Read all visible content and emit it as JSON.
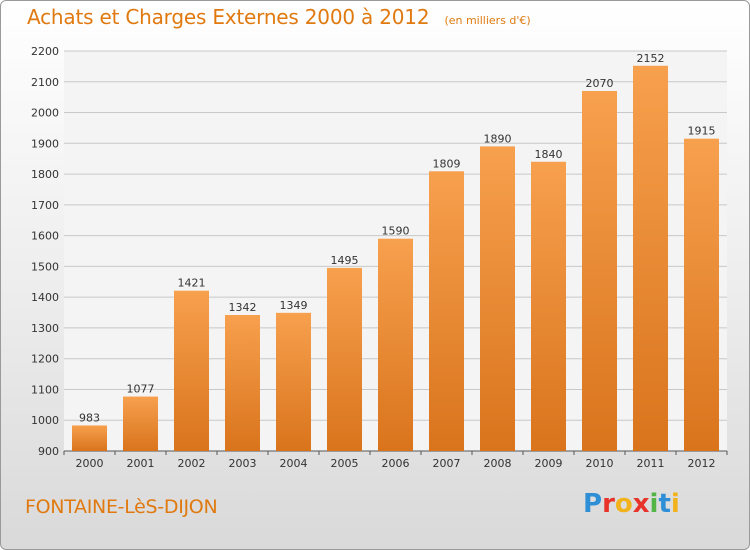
{
  "chart_data": {
    "type": "bar",
    "title": "Achats et Charges Externes 2000 à 2012",
    "subtitle": "(en milliers d'€)",
    "categories": [
      "2000",
      "2001",
      "2002",
      "2003",
      "2004",
      "2005",
      "2006",
      "2007",
      "2008",
      "2009",
      "2010",
      "2011",
      "2012"
    ],
    "values": [
      983,
      1077,
      1421,
      1342,
      1349,
      1495,
      1590,
      1809,
      1890,
      1840,
      2070,
      2152,
      1915
    ],
    "ylim": [
      900,
      2200
    ],
    "yticks": [
      900,
      1000,
      1100,
      1200,
      1300,
      1400,
      1500,
      1600,
      1700,
      1800,
      1900,
      2000,
      2100,
      2200
    ],
    "grid": true,
    "xlabel": "",
    "ylabel": "",
    "bar_color_top": "#f7a04e",
    "bar_color_bottom": "#d9741c"
  },
  "footer": {
    "city": "FONTAINE-LèS-DIJON",
    "logo_letters": [
      {
        "char": "P",
        "color": "#2f8fd6"
      },
      {
        "char": "r",
        "color": "#e8332a"
      },
      {
        "char": "o",
        "color": "#f2b21b"
      },
      {
        "char": "x",
        "color": "#e8332a"
      },
      {
        "char": "i",
        "color": "#55b447"
      },
      {
        "char": "t",
        "color": "#2f8fd6"
      },
      {
        "char": "i",
        "color": "#f2b21b"
      }
    ]
  },
  "colors": {
    "accent": "#e07a10"
  }
}
